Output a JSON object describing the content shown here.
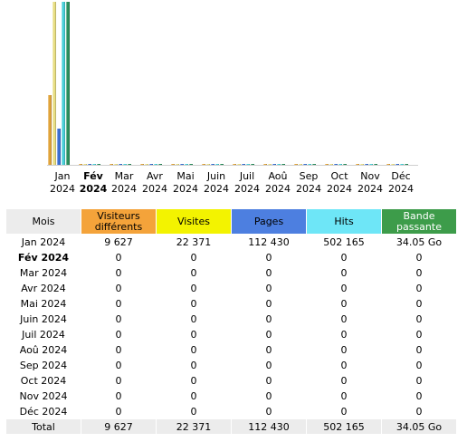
{
  "colors": {
    "visitors": "#e1a43b",
    "visits": "#e8de83",
    "pages": "#3b6fd4",
    "hits": "#4ad0d9",
    "bandwidth": "#2a8f5d"
  },
  "chart_data": {
    "type": "bar",
    "categories": [
      "Jan 2024",
      "Fév 2024",
      "Mar 2024",
      "Avr 2024",
      "Mai 2024",
      "Juin 2024",
      "Juil 2024",
      "Aoû 2024",
      "Sep 2024",
      "Oct 2024",
      "Nov 2024",
      "Déc 2024"
    ],
    "month_lines": [
      [
        "Jan",
        "2024"
      ],
      [
        "Fév",
        "2024"
      ],
      [
        "Mar",
        "2024"
      ],
      [
        "Avr",
        "2024"
      ],
      [
        "Mai",
        "2024"
      ],
      [
        "Juin",
        "2024"
      ],
      [
        "Juil",
        "2024"
      ],
      [
        "Aoû",
        "2024"
      ],
      [
        "Sep",
        "2024"
      ],
      [
        "Oct",
        "2024"
      ],
      [
        "Nov",
        "2024"
      ],
      [
        "Déc",
        "2024"
      ]
    ],
    "current_index": 1,
    "series": [
      {
        "key": "visitors",
        "values": [
          9627,
          0,
          0,
          0,
          0,
          0,
          0,
          0,
          0,
          0,
          0,
          0
        ]
      },
      {
        "key": "visits",
        "values": [
          22371,
          0,
          0,
          0,
          0,
          0,
          0,
          0,
          0,
          0,
          0,
          0
        ]
      },
      {
        "key": "pages",
        "values": [
          112430,
          0,
          0,
          0,
          0,
          0,
          0,
          0,
          0,
          0,
          0,
          0
        ]
      },
      {
        "key": "hits",
        "values": [
          502165,
          0,
          0,
          0,
          0,
          0,
          0,
          0,
          0,
          0,
          0,
          0
        ]
      },
      {
        "key": "bandwidth",
        "values": [
          34.05,
          0,
          0,
          0,
          0,
          0,
          0,
          0,
          0,
          0,
          0,
          0
        ]
      }
    ],
    "scale_groups": [
      [
        "visitors",
        "visits"
      ],
      [
        "pages",
        "hits"
      ],
      [
        "bandwidth"
      ]
    ]
  },
  "table": {
    "headers": {
      "month": "Mois",
      "visitors": "Visiteurs différents",
      "visits": "Visites",
      "pages": "Pages",
      "hits": "Hits",
      "bandwidth": "Bande passante"
    },
    "rows": [
      {
        "month": "Jan 2024",
        "visitors": "9 627",
        "visits": "22 371",
        "pages": "112 430",
        "hits": "502 165",
        "bandwidth": "34.05 Go"
      },
      {
        "month": "Fév 2024",
        "visitors": "0",
        "visits": "0",
        "pages": "0",
        "hits": "0",
        "bandwidth": "0"
      },
      {
        "month": "Mar 2024",
        "visitors": "0",
        "visits": "0",
        "pages": "0",
        "hits": "0",
        "bandwidth": "0"
      },
      {
        "month": "Avr 2024",
        "visitors": "0",
        "visits": "0",
        "pages": "0",
        "hits": "0",
        "bandwidth": "0"
      },
      {
        "month": "Mai 2024",
        "visitors": "0",
        "visits": "0",
        "pages": "0",
        "hits": "0",
        "bandwidth": "0"
      },
      {
        "month": "Juin 2024",
        "visitors": "0",
        "visits": "0",
        "pages": "0",
        "hits": "0",
        "bandwidth": "0"
      },
      {
        "month": "Juil 2024",
        "visitors": "0",
        "visits": "0",
        "pages": "0",
        "hits": "0",
        "bandwidth": "0"
      },
      {
        "month": "Aoû 2024",
        "visitors": "0",
        "visits": "0",
        "pages": "0",
        "hits": "0",
        "bandwidth": "0"
      },
      {
        "month": "Sep 2024",
        "visitors": "0",
        "visits": "0",
        "pages": "0",
        "hits": "0",
        "bandwidth": "0"
      },
      {
        "month": "Oct 2024",
        "visitors": "0",
        "visits": "0",
        "pages": "0",
        "hits": "0",
        "bandwidth": "0"
      },
      {
        "month": "Nov 2024",
        "visitors": "0",
        "visits": "0",
        "pages": "0",
        "hits": "0",
        "bandwidth": "0"
      },
      {
        "month": "Déc 2024",
        "visitors": "0",
        "visits": "0",
        "pages": "0",
        "hits": "0",
        "bandwidth": "0"
      }
    ],
    "total": {
      "month": "Total",
      "visitors": "9 627",
      "visits": "22 371",
      "pages": "112 430",
      "hits": "502 165",
      "bandwidth": "34.05 Go"
    }
  }
}
